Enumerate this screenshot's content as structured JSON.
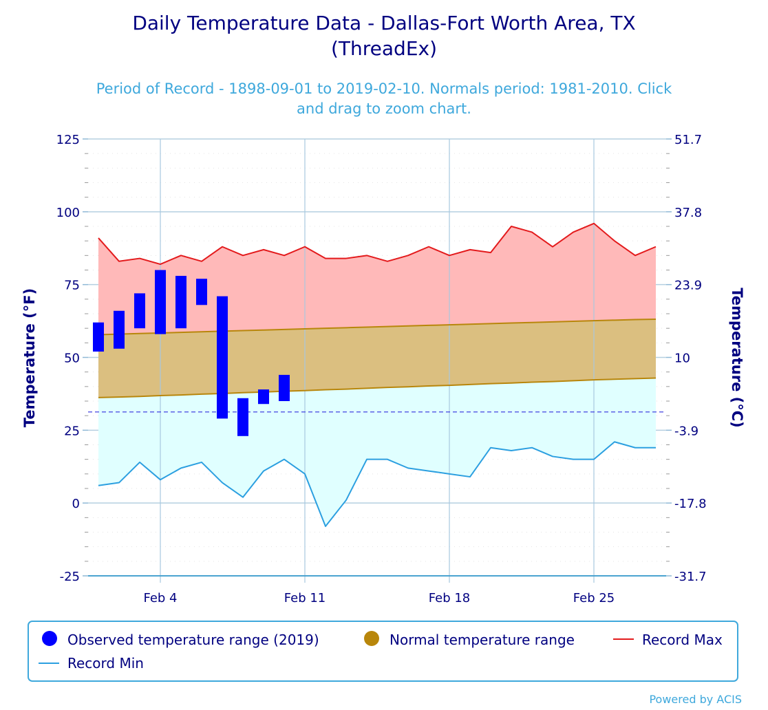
{
  "chart_data": {
    "type": "bar",
    "title": "Daily Temperature Data - Dallas-Fort Worth Area, TX",
    "title_line2": "(ThreadEx)",
    "subtitle_line1": "Period of Record - 1898-09-01 to 2019-02-10. Normals period: 1981-2010. Click",
    "subtitle_line2": "and drag to zoom chart.",
    "ylabel": "Temperature (°F)",
    "ylabel_right": "Temperature (°C)",
    "ylim": [
      -25,
      125
    ],
    "yticks": [
      -25,
      0,
      25,
      50,
      75,
      100,
      125
    ],
    "yticks_right": [
      "-31.7",
      "-17.8",
      "-3.9",
      "10",
      "23.9",
      "37.8",
      "51.7"
    ],
    "minor_tick_interval": 5,
    "x_start_day": 1,
    "x_end_day": 28,
    "x_month": "Feb",
    "xticks": [
      {
        "day": 4,
        "label": "Feb 4"
      },
      {
        "day": 11,
        "label": "Feb 11"
      },
      {
        "day": 18,
        "label": "Feb 18"
      },
      {
        "day": 25,
        "label": "Feb 25"
      }
    ],
    "freezing_line": 32,
    "grid": true,
    "legend_position": "bottom",
    "colors": {
      "observed": "#0000ff",
      "normal_fill": "#dbbf80",
      "normal_line": "#b8860b",
      "record_max_fill": "#ffb9b9",
      "record_max_line": "#e31a1c",
      "record_min_fill": "#e0ffff",
      "record_min_line": "#2b9fe0",
      "freezing": "#0000cc"
    },
    "series": [
      {
        "name": "Observed temperature range (2019)",
        "type": "columnrange",
        "days": [
          1,
          2,
          3,
          4,
          5,
          6,
          7,
          8,
          9,
          10
        ],
        "low": [
          52,
          53,
          60,
          58,
          60,
          68,
          29,
          23,
          34,
          35
        ],
        "high": [
          62,
          66,
          72,
          80,
          78,
          77,
          71,
          36,
          39,
          44
        ]
      },
      {
        "name": "Normal temperature range",
        "type": "arearange",
        "days": [
          1,
          2,
          3,
          4,
          5,
          6,
          7,
          8,
          9,
          10,
          11,
          12,
          13,
          14,
          15,
          16,
          17,
          18,
          19,
          20,
          21,
          22,
          23,
          24,
          25,
          26,
          27,
          28
        ],
        "low": [
          36.2,
          36.4,
          36.6,
          36.9,
          37.1,
          37.4,
          37.6,
          37.9,
          38.1,
          38.4,
          38.6,
          38.9,
          39.1,
          39.4,
          39.7,
          39.9,
          40.2,
          40.4,
          40.7,
          41.0,
          41.2,
          41.5,
          41.7,
          42.0,
          42.3,
          42.5,
          42.7,
          42.9
        ],
        "high": [
          57.8,
          58.0,
          58.2,
          58.4,
          58.6,
          58.8,
          59.0,
          59.2,
          59.4,
          59.6,
          59.8,
          60.0,
          60.2,
          60.4,
          60.6,
          60.8,
          61.0,
          61.2,
          61.4,
          61.6,
          61.8,
          62.0,
          62.2,
          62.4,
          62.6,
          62.8,
          63.0,
          63.1
        ]
      },
      {
        "name": "Record Max",
        "type": "line",
        "days": [
          1,
          2,
          3,
          4,
          5,
          6,
          7,
          8,
          9,
          10,
          11,
          12,
          13,
          14,
          15,
          16,
          17,
          18,
          19,
          20,
          21,
          22,
          23,
          24,
          25,
          26,
          27,
          28
        ],
        "values": [
          91,
          83,
          84,
          82,
          85,
          83,
          88,
          85,
          87,
          85,
          88,
          84,
          84,
          85,
          83,
          85,
          88,
          85,
          87,
          86,
          95,
          93,
          88,
          93,
          96,
          90,
          85,
          88
        ]
      },
      {
        "name": "Record Min",
        "type": "line",
        "days": [
          1,
          2,
          3,
          4,
          5,
          6,
          7,
          8,
          9,
          10,
          11,
          12,
          13,
          14,
          15,
          16,
          17,
          18,
          19,
          20,
          21,
          22,
          23,
          24,
          25,
          26,
          27,
          28
        ],
        "values": [
          6,
          7,
          14,
          8,
          12,
          14,
          7,
          2,
          11,
          15,
          10,
          -8,
          1,
          15,
          15,
          12,
          11,
          10,
          9,
          19,
          18,
          19,
          16,
          15,
          15,
          21,
          19,
          19
        ]
      }
    ],
    "legend": [
      {
        "name": "Observed temperature range (2019)",
        "symbol": "circle",
        "color": "#0000ff"
      },
      {
        "name": "Normal temperature range",
        "symbol": "circle",
        "color": "#b8860b"
      },
      {
        "name": "Record Max",
        "symbol": "line",
        "color": "#e31a1c"
      },
      {
        "name": "Record Min",
        "symbol": "line",
        "color": "#2b9fe0"
      }
    ],
    "credit": "Powered by ACIS"
  }
}
